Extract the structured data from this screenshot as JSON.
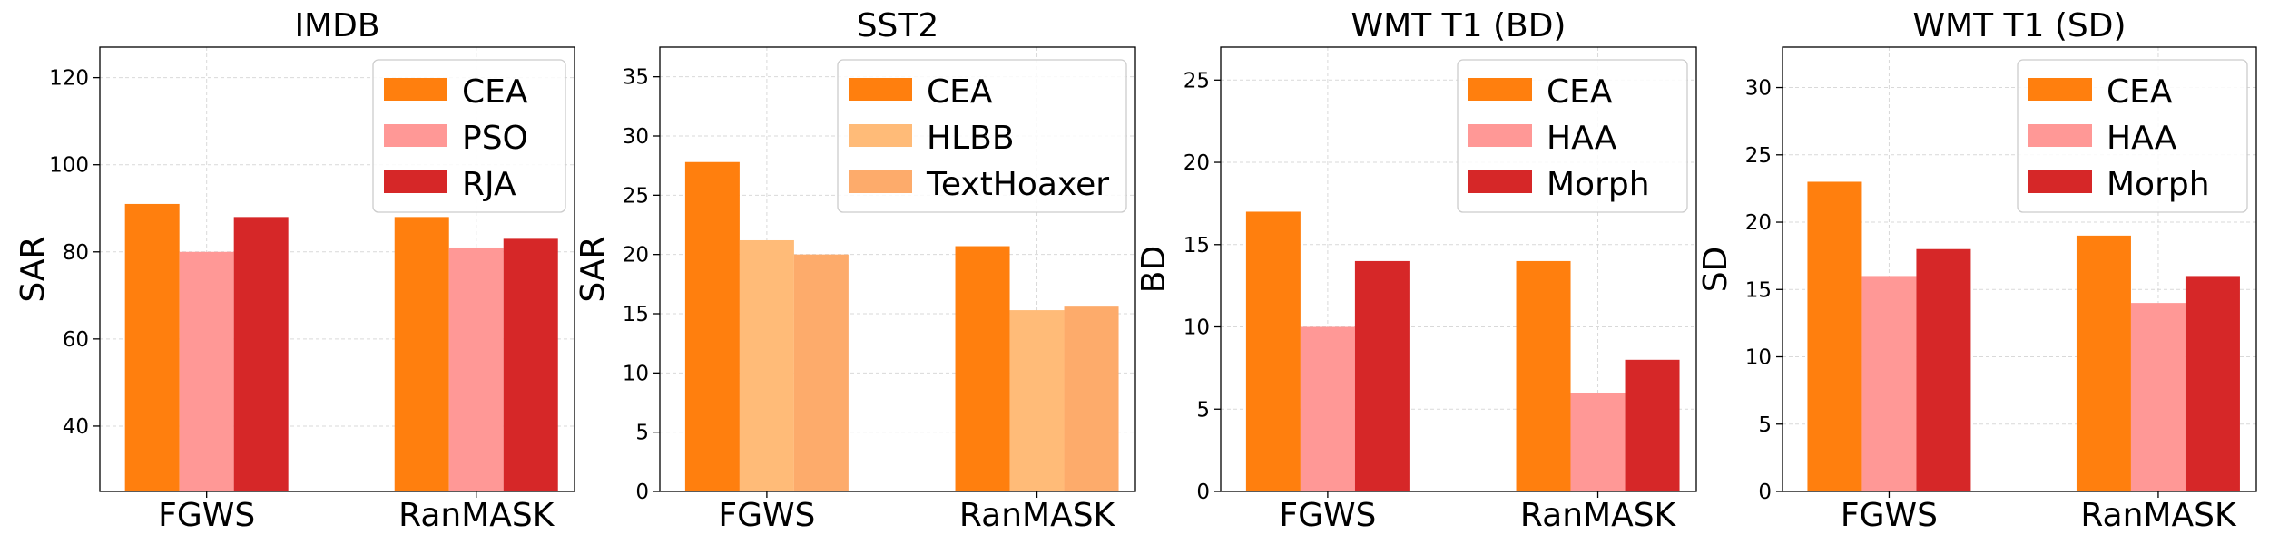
{
  "chart_data": [
    {
      "type": "bar",
      "title": "IMDB",
      "ylabel": "SAR",
      "categories": [
        "FGWS",
        "RanMASK"
      ],
      "ylim": [
        25,
        127
      ],
      "yticks": [
        40,
        60,
        80,
        100,
        120
      ],
      "grid": true,
      "legend_position": "top-right",
      "series": [
        {
          "name": "CEA",
          "color": "#ff7f0e",
          "values": [
            91,
            88
          ]
        },
        {
          "name": "PSO",
          "color": "#ff9896",
          "values": [
            80,
            81
          ]
        },
        {
          "name": "RJA",
          "color": "#d62728",
          "values": [
            88,
            83
          ]
        }
      ]
    },
    {
      "type": "bar",
      "title": "SST2",
      "ylabel": "SAR",
      "categories": [
        "FGWS",
        "RanMASK"
      ],
      "ylim": [
        0,
        37.5
      ],
      "yticks": [
        0,
        5,
        10,
        15,
        20,
        25,
        30,
        35
      ],
      "grid": true,
      "legend_position": "top-right",
      "series": [
        {
          "name": "CEA",
          "color": "#ff7f0e",
          "values": [
            27.8,
            20.7
          ]
        },
        {
          "name": "HLBB",
          "color": "#ffbb78",
          "values": [
            21.2,
            15.3
          ]
        },
        {
          "name": "TextHoaxer",
          "color": "#fdab6b",
          "values": [
            20.0,
            15.6
          ]
        }
      ]
    },
    {
      "type": "bar",
      "title": "WMT T1 (BD)",
      "ylabel": "BD",
      "categories": [
        "FGWS",
        "RanMASK"
      ],
      "ylim": [
        0,
        27
      ],
      "yticks": [
        0,
        5,
        10,
        15,
        20,
        25
      ],
      "grid": true,
      "legend_position": "top-right",
      "series": [
        {
          "name": "CEA",
          "color": "#ff7f0e",
          "values": [
            17,
            14
          ]
        },
        {
          "name": "HAA",
          "color": "#ff9896",
          "values": [
            10,
            6
          ]
        },
        {
          "name": "Morph",
          "color": "#d62728",
          "values": [
            14,
            8
          ]
        }
      ]
    },
    {
      "type": "bar",
      "title": "WMT T1 (SD)",
      "ylabel": "SD",
      "categories": [
        "FGWS",
        "RanMASK"
      ],
      "ylim": [
        0,
        33
      ],
      "yticks": [
        0,
        5,
        10,
        15,
        20,
        25,
        30
      ],
      "grid": true,
      "legend_position": "top-right",
      "series": [
        {
          "name": "CEA",
          "color": "#ff7f0e",
          "values": [
            23,
            19
          ]
        },
        {
          "name": "HAA",
          "color": "#ff9896",
          "values": [
            16,
            14
          ]
        },
        {
          "name": "Morph",
          "color": "#d62728",
          "values": [
            18,
            16
          ]
        }
      ]
    }
  ]
}
